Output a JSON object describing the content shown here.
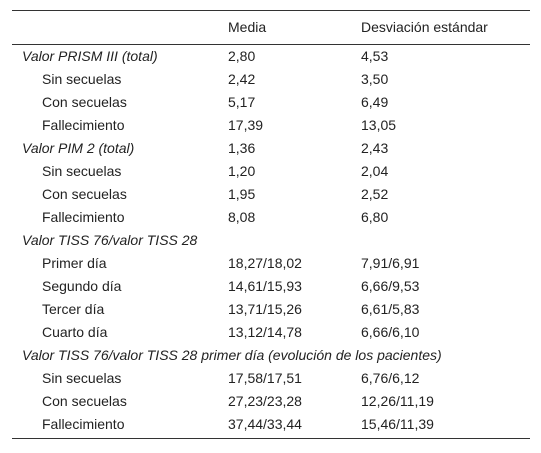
{
  "table": {
    "header": [
      "Media",
      "Desviación estándar"
    ],
    "groups": [
      {
        "label": "Valor PRISM III (total)",
        "mean": "2,80",
        "sd": "4,53",
        "rows": [
          {
            "label": "Sin secuelas",
            "mean": "2,42",
            "sd": "3,50"
          },
          {
            "label": "Con secuelas",
            "mean": "5,17",
            "sd": "6,49"
          },
          {
            "label": "Fallecimiento",
            "mean": "17,39",
            "sd": "13,05"
          }
        ]
      },
      {
        "label": "Valor PIM 2 (total)",
        "mean": "1,36",
        "sd": "2,43",
        "rows": [
          {
            "label": "Sin secuelas",
            "mean": "1,20",
            "sd": "2,04"
          },
          {
            "label": "Con secuelas",
            "mean": "1,95",
            "sd": "2,52"
          },
          {
            "label": "Fallecimiento",
            "mean": "8,08",
            "sd": "6,80"
          }
        ]
      },
      {
        "label": "Valor TISS 76/valor TISS 28",
        "rows": [
          {
            "label": "Primer día",
            "mean": "18,27/18,02",
            "sd": "7,91/6,91"
          },
          {
            "label": "Segundo día",
            "mean": "14,61/15,93",
            "sd": "6,66/9,53"
          },
          {
            "label": "Tercer día",
            "mean": "13,71/15,26",
            "sd": "6,61/5,83"
          },
          {
            "label": "Cuarto día",
            "mean": "13,12/14,78",
            "sd": "6,66/6,10"
          }
        ]
      },
      {
        "label": "Valor TISS 76/valor TISS 28 primer día (evolución de los pacientes)",
        "rows": [
          {
            "label": "Sin secuelas",
            "mean": "17,58/17,51",
            "sd": "6,76/6,12"
          },
          {
            "label": "Con secuelas",
            "mean": "27,23/23,28",
            "sd": "12,26/11,19"
          },
          {
            "label": "Fallecimiento",
            "mean": "37,44/33,44",
            "sd": "15,46/11,39"
          }
        ]
      }
    ]
  }
}
